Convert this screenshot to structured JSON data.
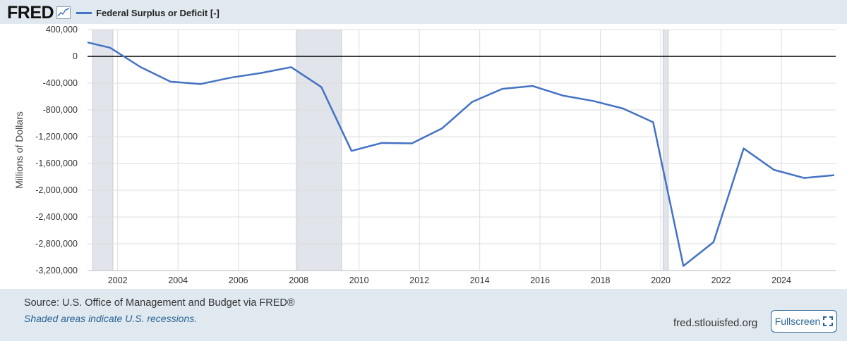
{
  "header": {
    "logo_text": "FRED",
    "graph_icon": "line-chart-icon",
    "legend_label": "Federal Surplus or Deficit [-]"
  },
  "colors": {
    "series": "#4472c4",
    "recession_shade": "#e1e4ea",
    "grid": "#dddddd",
    "zero_line": "#000000",
    "background": "#e1e9f0",
    "link": "#2a6496"
  },
  "chart_data": {
    "type": "line",
    "ylabel": "Millions of Dollars",
    "xlabel": "",
    "xlim": [
      2001.0,
      2025.8
    ],
    "ylim": [
      -3200000,
      400000
    ],
    "yticks": [
      400000,
      0,
      -400000,
      -800000,
      -1200000,
      -1600000,
      -2000000,
      -2400000,
      -2800000,
      -3200000
    ],
    "ytick_labels": [
      "400,000",
      "0",
      "-400,000",
      "-800,000",
      "-1,200,000",
      "-1,600,000",
      "-2,000,000",
      "-2,400,000",
      "-2,800,000",
      "-3,200,000"
    ],
    "xticks": [
      2002,
      2004,
      2006,
      2008,
      2010,
      2012,
      2014,
      2016,
      2018,
      2020,
      2022,
      2024
    ],
    "xtick_labels": [
      "2002",
      "2004",
      "2006",
      "2008",
      "2010",
      "2012",
      "2014",
      "2016",
      "2018",
      "2020",
      "2022",
      "2024"
    ],
    "grid": true,
    "zero_line": true,
    "recessions": [
      [
        2001.17,
        2001.84
      ],
      [
        2007.92,
        2009.42
      ],
      [
        2020.08,
        2020.25
      ]
    ],
    "series": [
      {
        "name": "Federal Surplus or Deficit [-]",
        "x": [
          2000.75,
          2001.75,
          2002.75,
          2003.75,
          2004.75,
          2005.75,
          2006.75,
          2007.75,
          2008.75,
          2009.75,
          2010.75,
          2011.75,
          2012.75,
          2013.75,
          2014.75,
          2015.75,
          2016.75,
          2017.75,
          2018.75,
          2019.75,
          2020.75,
          2021.75,
          2022.75,
          2023.75,
          2024.75,
          2025.75
        ],
        "values": [
          236000,
          128000,
          -158000,
          -378000,
          -413000,
          -318000,
          -248000,
          -161000,
          -459000,
          -1413000,
          -1294000,
          -1300000,
          -1077000,
          -680000,
          -485000,
          -442000,
          -585000,
          -665000,
          -779000,
          -984000,
          -3132000,
          -2775000,
          -1376000,
          -1695000,
          -1817000,
          -1775000
        ]
      }
    ]
  },
  "footer": {
    "source": "Source: U.S. Office of Management and Budget via FRED®",
    "note": "Shaded areas indicate U.S. recessions.",
    "site": "fred.stlouisfed.org",
    "fullscreen_label": "Fullscreen"
  }
}
